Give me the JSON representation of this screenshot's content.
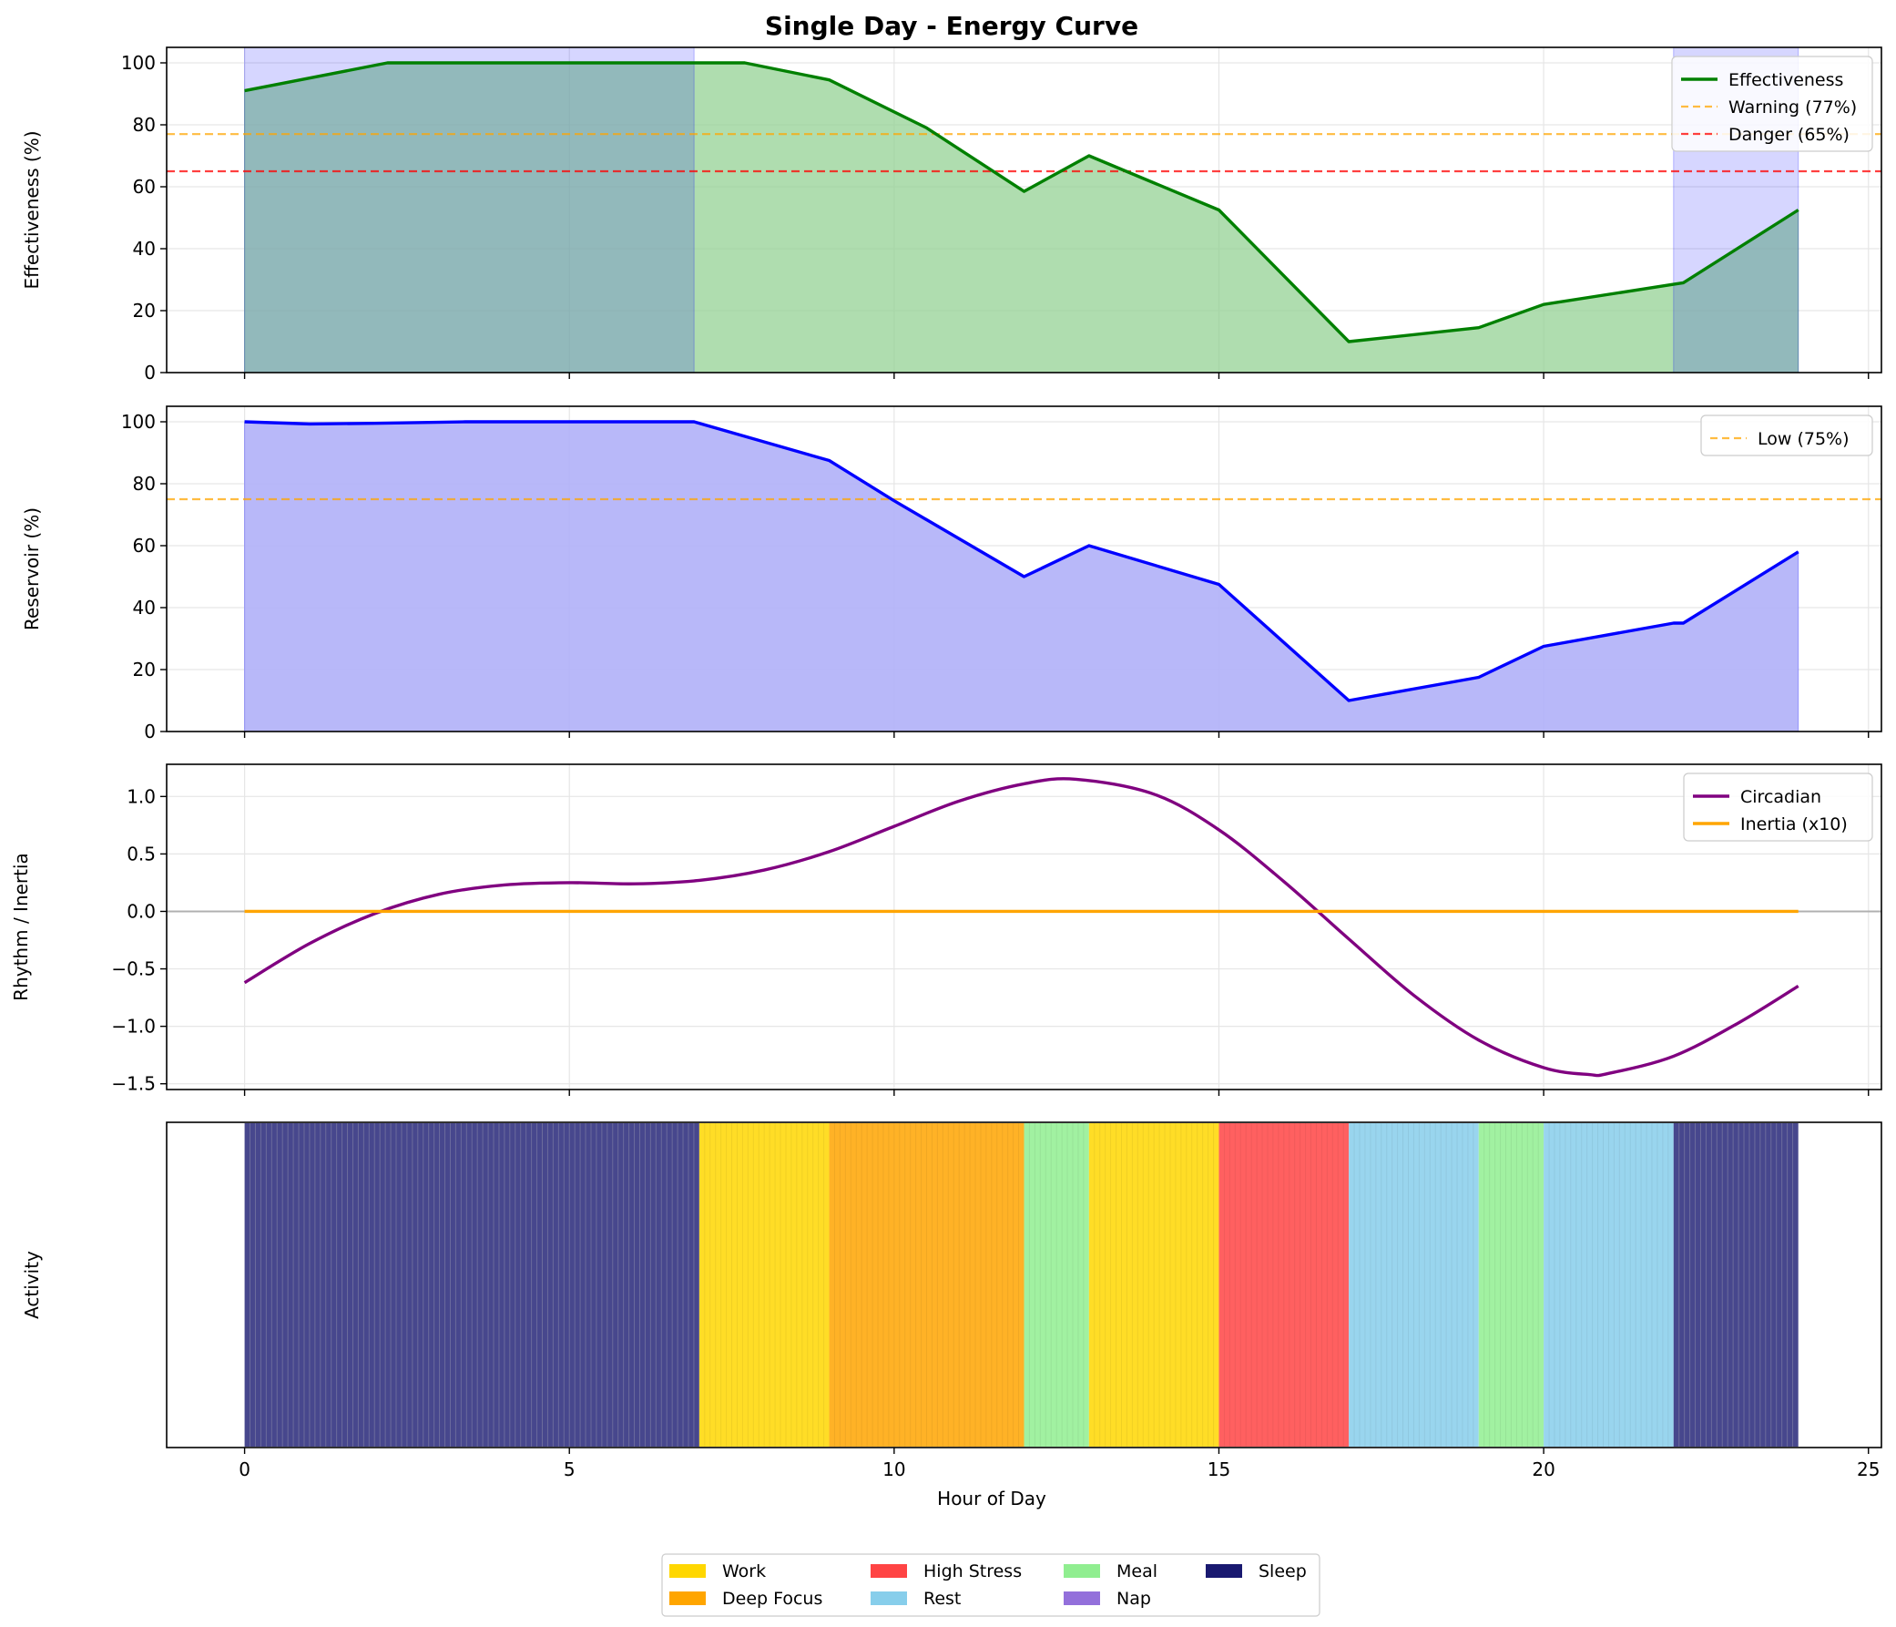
{
  "chart_data": {
    "title": "Single Day - Energy Curve",
    "xlabel": "Hour of Day",
    "xlim": [
      -1.2,
      25.2
    ],
    "xticks": [
      0,
      5,
      10,
      15,
      20,
      25
    ],
    "grid": true,
    "colors": {
      "effectiveness": "#008000",
      "effectiveness_fill": "#90d090",
      "sleep_shade": "#0000ff",
      "warning": "#ffa500",
      "danger": "#ff0000",
      "reservoir": "#0000ff",
      "reservoir_fill": "#b0b0f8",
      "circadian": "#800080",
      "inertia": "#ffa500"
    },
    "panels": [
      {
        "id": "effectiveness",
        "type": "area",
        "ylabel": "Effectiveness (%)",
        "ylim": [
          0,
          105
        ],
        "yticks": [
          0,
          20,
          40,
          60,
          80,
          100
        ],
        "sleep_shading": [
          [
            0,
            6.92
          ],
          [
            22,
            23.92
          ]
        ],
        "series": [
          {
            "name": "Effectiveness",
            "x": [
              0,
              2.2,
              7.7,
              9,
              10.5,
              12,
              13,
              15,
              17,
              19,
              20,
              22,
              22.15,
              23.92
            ],
            "y": [
              91,
              100,
              100,
              94.5,
              79,
              58.5,
              70,
              52.5,
              10,
              14.5,
              22,
              28.5,
              29,
              52.5
            ]
          }
        ],
        "hlines": [
          {
            "name": "Warning (77%)",
            "y": 77,
            "color": "#ffa500"
          },
          {
            "name": "Danger (65%)",
            "y": 65,
            "color": "#ff0000"
          }
        ],
        "legend": [
          "Effectiveness",
          "Warning (77%)",
          "Danger (65%)"
        ],
        "legend_position": "upper-right"
      },
      {
        "id": "reservoir",
        "type": "area",
        "ylabel": "Reservoir (%)",
        "ylim": [
          0,
          105
        ],
        "yticks": [
          0,
          20,
          40,
          60,
          80,
          100
        ],
        "series": [
          {
            "name": "Reservoir",
            "x": [
              0,
              1,
              2,
              3.4,
              6.92,
              9,
              10,
              12,
              13,
              15,
              17,
              19,
              20,
              22,
              22.15,
              23.92
            ],
            "y": [
              100,
              99.3,
              99.5,
              100,
              100,
              87.5,
              74.5,
              50,
              60,
              47.5,
              10,
              17.5,
              27.5,
              35,
              35,
              58
            ]
          }
        ],
        "hlines": [
          {
            "name": "Low (75%)",
            "y": 75,
            "color": "#ffa500"
          }
        ],
        "legend": [
          "Low (75%)"
        ],
        "legend_position": "upper-right"
      },
      {
        "id": "rhythm",
        "type": "line",
        "ylabel": "Rhythm / Inertia",
        "ylim": [
          -1.55,
          1.28
        ],
        "yticks": [
          -1.5,
          -1.0,
          -0.5,
          0.0,
          0.5,
          1.0
        ],
        "ytick_labels": [
          "−1.5",
          "−1.0",
          "−0.5",
          "0.0",
          "0.5",
          "1.0"
        ],
        "series": [
          {
            "name": "Circadian",
            "x": [
              0,
              1,
              2,
              3,
              4,
              5,
              6,
              7,
              8,
              9,
              10,
              11,
              12,
              12.8,
              14,
              15,
              16,
              17,
              18,
              19,
              20,
              20.7,
              21,
              22,
              23,
              23.92
            ],
            "y": [
              -0.62,
              -0.28,
              -0.02,
              0.15,
              0.23,
              0.25,
              0.24,
              0.27,
              0.36,
              0.52,
              0.74,
              0.96,
              1.11,
              1.15,
              1.02,
              0.71,
              0.26,
              -0.24,
              -0.73,
              -1.12,
              -1.36,
              -1.42,
              -1.41,
              -1.26,
              -0.97,
              -0.65
            ]
          },
          {
            "name": "Inertia (x10)",
            "x": [
              0,
              23.92
            ],
            "y": [
              0,
              0
            ]
          }
        ],
        "legend": [
          "Circadian",
          "Inertia (x10)"
        ],
        "legend_position": "upper-right"
      },
      {
        "id": "activity",
        "type": "bar",
        "ylabel": "Activity",
        "segments": [
          {
            "activity": "Sleep",
            "start": 0,
            "end": 7
          },
          {
            "activity": "Work",
            "start": 7,
            "end": 9
          },
          {
            "activity": "Deep Focus",
            "start": 9,
            "end": 12
          },
          {
            "activity": "Meal",
            "start": 12,
            "end": 13
          },
          {
            "activity": "Work",
            "start": 13,
            "end": 15
          },
          {
            "activity": "High Stress",
            "start": 15,
            "end": 17
          },
          {
            "activity": "Rest",
            "start": 17,
            "end": 19
          },
          {
            "activity": "Meal",
            "start": 19,
            "end": 20
          },
          {
            "activity": "Rest",
            "start": 20,
            "end": 22
          },
          {
            "activity": "Sleep",
            "start": 22,
            "end": 23.92
          }
        ],
        "activity_colors": {
          "Work": "#ffd700",
          "Deep Focus": "#ffa500",
          "High Stress": "#ff4444",
          "Rest": "#87ceeb",
          "Meal": "#90ee90",
          "Nap": "#9370db",
          "Sleep": "#191970"
        }
      }
    ],
    "activity_legend": [
      "Work",
      "Deep Focus",
      "High Stress",
      "Rest",
      "Meal",
      "Nap",
      "Sleep"
    ]
  }
}
